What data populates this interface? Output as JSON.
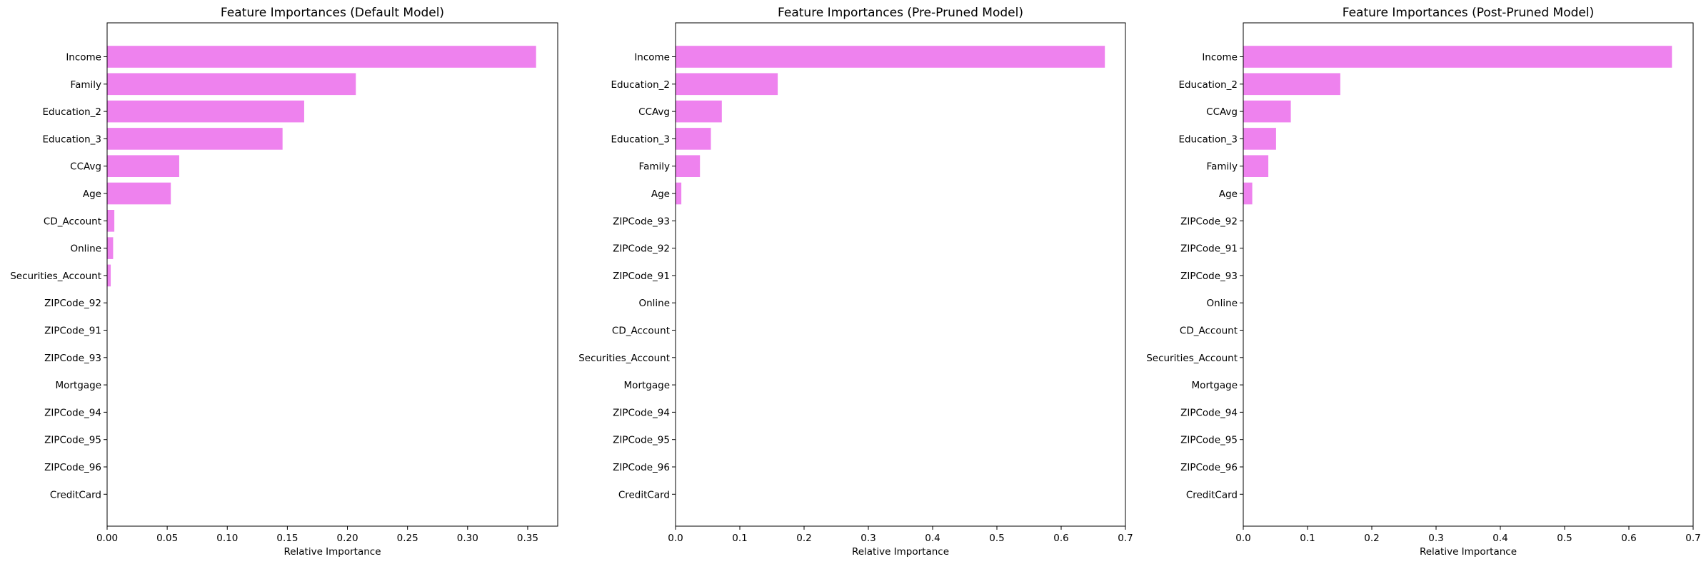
{
  "chart_data": [
    {
      "type": "bar",
      "orientation": "horizontal",
      "title": "Feature Importances (Default Model)",
      "xlabel": "Relative Importance",
      "ylabel": "",
      "xlim": [
        0,
        0.375
      ],
      "xticks": [
        0.0,
        0.05,
        0.1,
        0.15,
        0.2,
        0.25,
        0.3,
        0.35
      ],
      "xtick_labels": [
        "0.00",
        "0.05",
        "0.10",
        "0.15",
        "0.20",
        "0.25",
        "0.30",
        "0.35"
      ],
      "bar_color": "#ee82ee",
      "categories": [
        "Income",
        "Family",
        "Education_2",
        "Education_3",
        "CCAvg",
        "Age",
        "CD_Account",
        "Online",
        "Securities_Account",
        "ZIPCode_92",
        "ZIPCode_91",
        "ZIPCode_93",
        "Mortgage",
        "ZIPCode_94",
        "ZIPCode_95",
        "ZIPCode_96",
        "CreditCard"
      ],
      "values": [
        0.357,
        0.207,
        0.164,
        0.146,
        0.06,
        0.053,
        0.006,
        0.005,
        0.003,
        0,
        0,
        0,
        0,
        0,
        0,
        0,
        0
      ]
    },
    {
      "type": "bar",
      "orientation": "horizontal",
      "title": "Feature Importances (Pre-Pruned Model)",
      "xlabel": "Relative Importance",
      "ylabel": "",
      "xlim": [
        0,
        0.7
      ],
      "xticks": [
        0.0,
        0.1,
        0.2,
        0.3,
        0.4,
        0.5,
        0.6,
        0.7
      ],
      "xtick_labels": [
        "0.0",
        "0.1",
        "0.2",
        "0.3",
        "0.4",
        "0.5",
        "0.6",
        "0.7"
      ],
      "bar_color": "#ee82ee",
      "categories": [
        "Income",
        "Education_2",
        "CCAvg",
        "Education_3",
        "Family",
        "Age",
        "ZIPCode_93",
        "ZIPCode_92",
        "ZIPCode_91",
        "Online",
        "CD_Account",
        "Securities_Account",
        "Mortgage",
        "ZIPCode_94",
        "ZIPCode_95",
        "ZIPCode_96",
        "CreditCard"
      ],
      "values": [
        0.668,
        0.159,
        0.072,
        0.055,
        0.038,
        0.009,
        0,
        0,
        0,
        0,
        0,
        0,
        0,
        0,
        0,
        0,
        0
      ]
    },
    {
      "type": "bar",
      "orientation": "horizontal",
      "title": "Feature Importances (Post-Pruned Model)",
      "xlabel": "Relative Importance",
      "ylabel": "",
      "xlim": [
        0,
        0.7
      ],
      "xticks": [
        0.0,
        0.1,
        0.2,
        0.3,
        0.4,
        0.5,
        0.6,
        0.7
      ],
      "xtick_labels": [
        "0.0",
        "0.1",
        "0.2",
        "0.3",
        "0.4",
        "0.5",
        "0.6",
        "0.7"
      ],
      "bar_color": "#ee82ee",
      "categories": [
        "Income",
        "Education_2",
        "CCAvg",
        "Education_3",
        "Family",
        "Age",
        "ZIPCode_92",
        "ZIPCode_91",
        "ZIPCode_93",
        "Online",
        "CD_Account",
        "Securities_Account",
        "Mortgage",
        "ZIPCode_94",
        "ZIPCode_95",
        "ZIPCode_96",
        "CreditCard"
      ],
      "values": [
        0.667,
        0.151,
        0.074,
        0.051,
        0.039,
        0.014,
        0,
        0,
        0,
        0,
        0,
        0,
        0,
        0,
        0,
        0,
        0
      ]
    }
  ]
}
